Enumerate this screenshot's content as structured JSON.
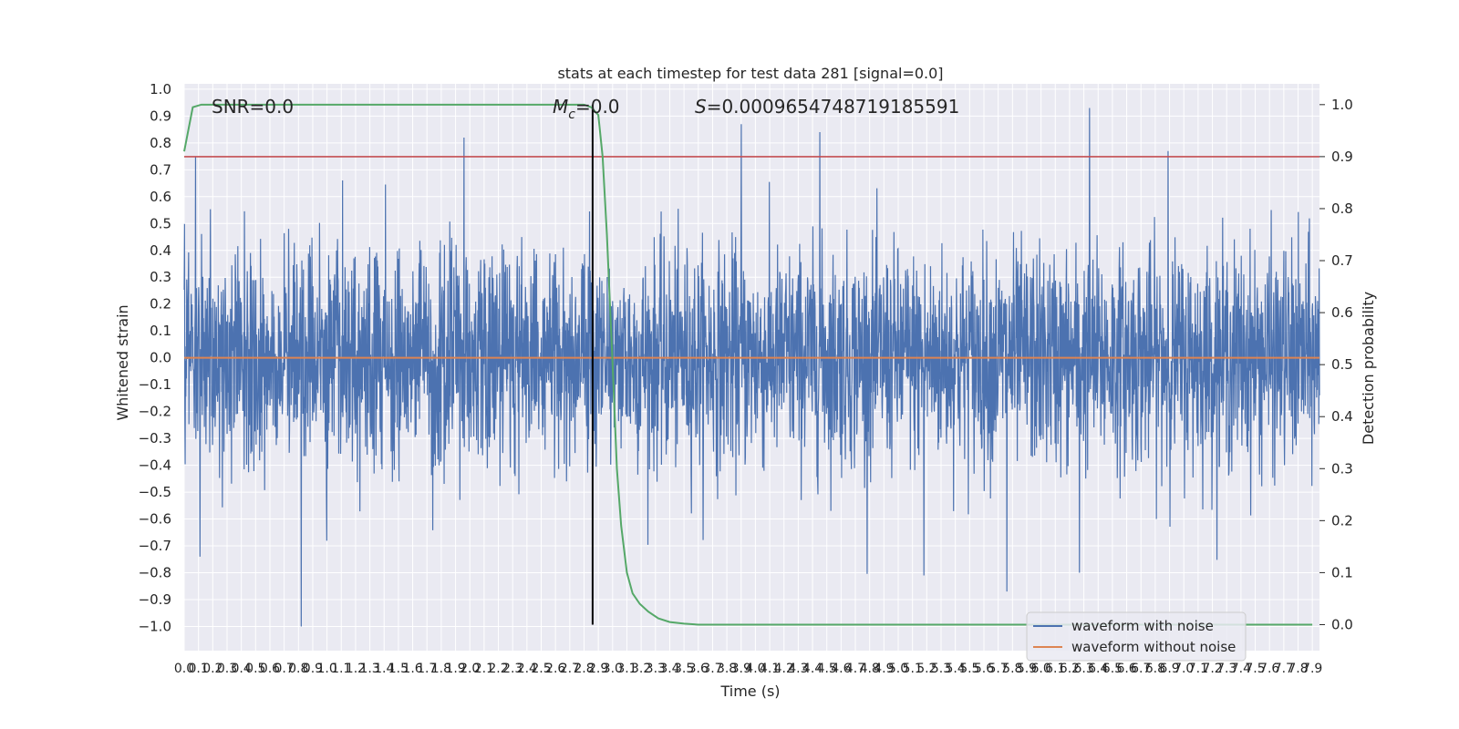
{
  "chart_data": {
    "type": "line",
    "title": "stats at each timestep for test data 281 [signal=0.0]",
    "xlabel": "Time (s)",
    "ylabel_left": "Whitened strain",
    "ylabel_right": "Detection probability",
    "xlim": [
      0.0,
      7.95
    ],
    "ylim_left": [
      -1.09,
      1.02
    ],
    "ylim_right": [
      -0.05,
      1.04
    ],
    "x_ticks": [
      "0.0",
      "0.1",
      "0.2",
      "0.3",
      "0.4",
      "0.5",
      "0.6",
      "0.7",
      "0.8",
      "0.9",
      "1.0",
      "1.1",
      "1.2",
      "1.3",
      "1.4",
      "1.5",
      "1.6",
      "1.7",
      "1.8",
      "1.9",
      "2.0",
      "2.1",
      "2.2",
      "2.3",
      "2.4",
      "2.5",
      "2.6",
      "2.7",
      "2.8",
      "2.9",
      "3.0",
      "3.1",
      "3.2",
      "3.3",
      "3.4",
      "3.5",
      "3.6",
      "3.7",
      "3.8",
      "3.9",
      "4.0",
      "4.1",
      "4.2",
      "4.3",
      "4.4",
      "4.5",
      "4.6",
      "4.7",
      "4.8",
      "4.9",
      "5.0",
      "5.1",
      "5.2",
      "5.3",
      "5.4",
      "5.5",
      "5.6",
      "5.7",
      "5.8",
      "5.9",
      "6.0",
      "6.1",
      "6.2",
      "6.3",
      "6.4",
      "6.5",
      "6.6",
      "6.7",
      "6.8",
      "6.9",
      "7.0",
      "7.1",
      "7.2",
      "7.3",
      "7.4",
      "7.5",
      "7.6",
      "7.7",
      "7.8",
      "7.9"
    ],
    "y_ticks_left": [
      "1.0",
      "0.9",
      "0.8",
      "0.7",
      "0.6",
      "0.5",
      "0.4",
      "0.3",
      "0.2",
      "0.1",
      "0.0",
      "-0.1",
      "-0.2",
      "-0.3",
      "-0.4",
      "-0.5",
      "-0.6",
      "-0.7",
      "-0.8",
      "-0.9",
      "-1.0"
    ],
    "y_ticks_right": [
      "1.0",
      "0.9",
      "0.8",
      "0.7",
      "0.6",
      "0.5",
      "0.4",
      "0.3",
      "0.2",
      "0.1",
      "0.0"
    ],
    "annotations": {
      "snr": "SNR=0.0",
      "mc_symbol": "M",
      "mc_sub": "c",
      "mc_value": "=0.0",
      "s_symbol": "S",
      "s_value": "=0.0009654748719185591"
    },
    "series": [
      {
        "name": "waveform with noise",
        "axis": "left",
        "color": "#4c72b0",
        "description": "dense white-noise strain, envelope approx -1.0 to 0.93",
        "peaks": [
          {
            "x": 0.08,
            "y": 0.75
          },
          {
            "x": 0.11,
            "y": -0.74
          },
          {
            "x": 0.82,
            "y": -1.0
          },
          {
            "x": 1.96,
            "y": 0.82
          },
          {
            "x": 3.9,
            "y": 0.87
          },
          {
            "x": 4.45,
            "y": 0.84
          },
          {
            "x": 6.34,
            "y": 0.93
          },
          {
            "x": 6.89,
            "y": 0.77
          },
          {
            "x": 5.76,
            "y": -0.87
          },
          {
            "x": 5.18,
            "y": -0.81
          },
          {
            "x": 6.27,
            "y": -0.8
          }
        ]
      },
      {
        "name": "waveform without noise",
        "axis": "left",
        "color": "#dd8452",
        "values_constant": 0.0
      },
      {
        "name": "detection probability",
        "axis": "right",
        "color": "#55a868",
        "x": [
          0.0,
          0.06,
          0.12,
          0.2,
          0.5,
          1.0,
          1.5,
          2.0,
          2.5,
          2.8,
          2.85,
          2.9,
          2.93,
          2.96,
          3.0,
          3.03,
          3.06,
          3.1,
          3.14,
          3.19,
          3.25,
          3.32,
          3.4,
          3.5,
          3.6,
          3.8,
          4.5,
          5.0,
          5.5,
          6.0,
          6.5,
          7.0,
          7.5,
          7.9
        ],
        "y": [
          0.91,
          0.995,
          1.0,
          1.0,
          1.0,
          1.0,
          1.0,
          1.0,
          1.0,
          1.0,
          0.995,
          0.98,
          0.9,
          0.75,
          0.5,
          0.3,
          0.19,
          0.1,
          0.06,
          0.04,
          0.025,
          0.012,
          0.005,
          0.002,
          0.0,
          0.0,
          0.0,
          0.0,
          0.0,
          0.0,
          0.0,
          0.0,
          0.0,
          0.0
        ]
      }
    ],
    "threshold": {
      "axis": "right",
      "value": 0.9,
      "color": "#c44e52"
    },
    "vertical_marker": {
      "x": 2.86,
      "color": "#000000"
    },
    "legend": {
      "location": "lower-right",
      "entries": [
        {
          "label": "waveform with noise",
          "color": "#4c72b0"
        },
        {
          "label": "waveform without noise",
          "color": "#dd8452"
        }
      ]
    },
    "colors": {
      "axes_bg": "#eaeaf2",
      "grid": "#ffffff",
      "noise": "#4c72b0",
      "clean": "#dd8452",
      "prob": "#55a868",
      "threshold": "#c44e52"
    }
  }
}
